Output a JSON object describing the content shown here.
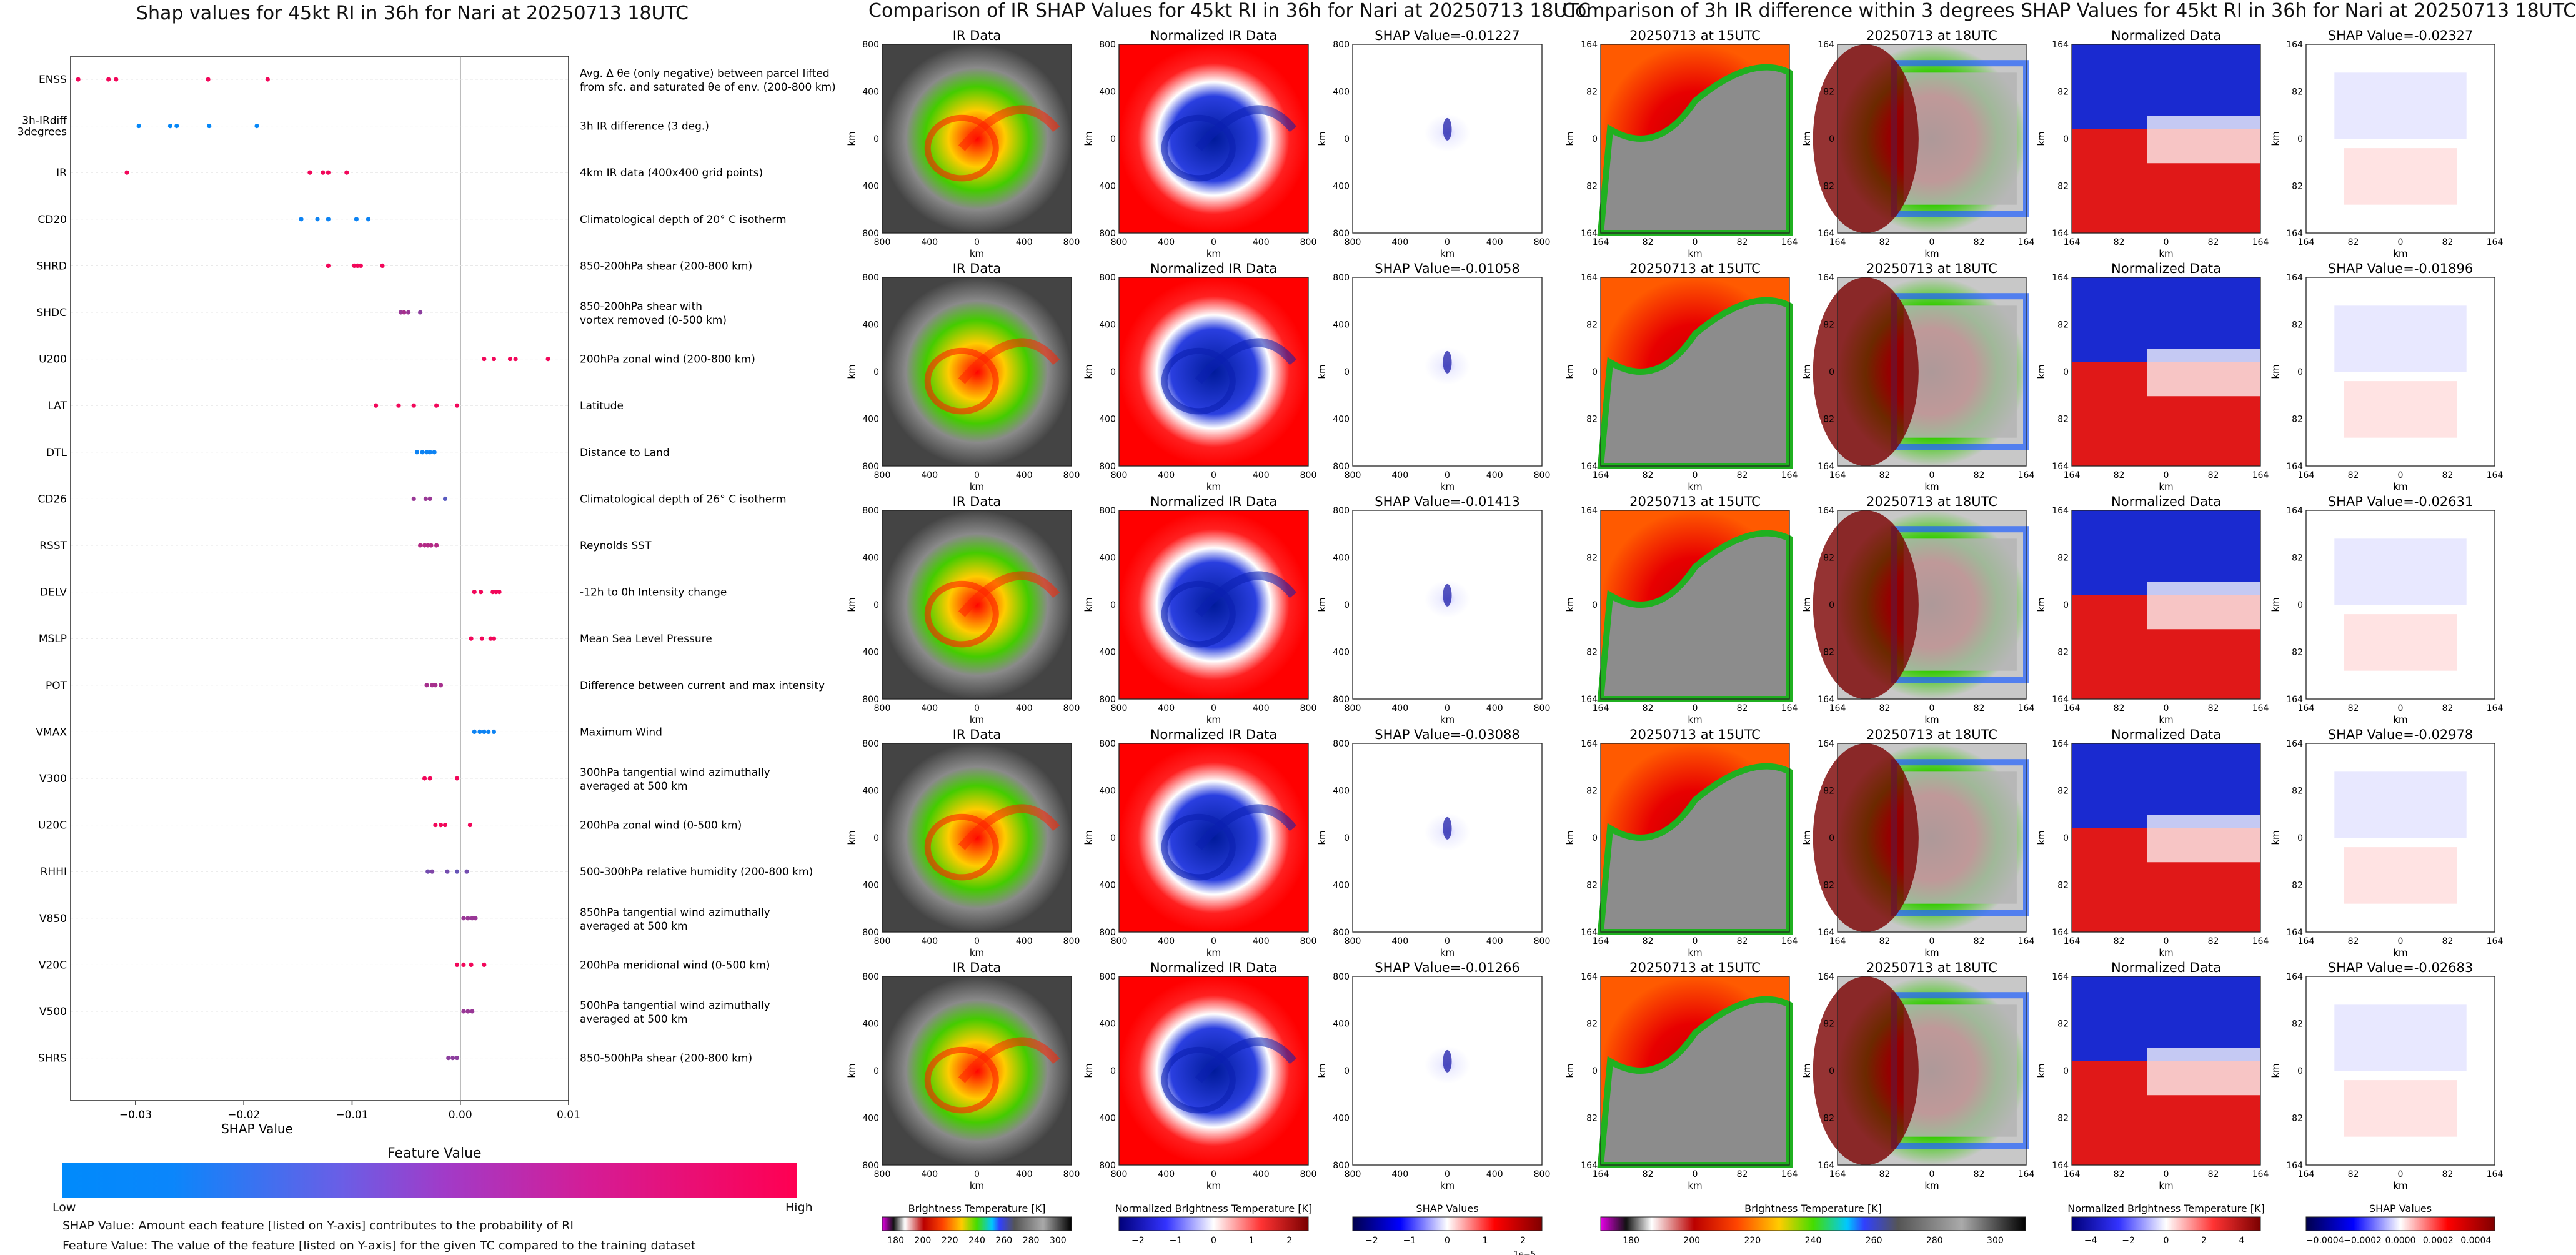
{
  "chart_data": [
    {
      "type": "scatter",
      "title": "Shap values for 45kt RI in 36h for Nari at 20250713 18UTC",
      "xlabel": "SHAP Value",
      "xlim": [
        -0.036,
        0.01
      ],
      "xticks": [
        "−0.03",
        "−0.02",
        "−0.01",
        "0.00",
        "0.01"
      ],
      "xtick_values": [
        -0.03,
        -0.02,
        -0.01,
        0.0,
        0.01
      ],
      "features": [
        {
          "name": "ENSS",
          "desc": [
            "Avg. Δ θe (only negative) between parcel lifted",
            "from sfc. and saturated θe of env. (200-800 km)"
          ],
          "values": [
            -0.0353,
            -0.0325,
            -0.0318,
            -0.0233,
            -0.0178
          ],
          "levels": [
            0.95,
            0.95,
            0.95,
            0.95,
            0.95
          ]
        },
        {
          "name": "3h-IRdiff 3degrees",
          "desc": [
            "3h IR difference (3 deg.)"
          ],
          "values": [
            -0.0297,
            -0.0268,
            -0.0262,
            -0.0232,
            -0.0188
          ],
          "levels": [
            0.02,
            0.02,
            0.02,
            0.02,
            0.02
          ]
        },
        {
          "name": "IR",
          "desc": [
            "4km IR data (400x400 grid points)"
          ],
          "values": [
            -0.0308,
            -0.0139,
            -0.0127,
            -0.0122,
            -0.0105
          ],
          "levels": [
            0.95,
            0.95,
            0.95,
            0.95,
            0.95
          ]
        },
        {
          "name": "CD20",
          "desc": [
            "Climatological depth of 20° C isotherm"
          ],
          "values": [
            -0.0147,
            -0.0132,
            -0.0122,
            -0.0096,
            -0.0085
          ],
          "levels": [
            0.05,
            0.05,
            0.05,
            0.05,
            0.05
          ]
        },
        {
          "name": "SHRD",
          "desc": [
            "850-200hPa shear (200-800 km)"
          ],
          "values": [
            -0.0122,
            -0.0098,
            -0.0095,
            -0.0092,
            -0.0072
          ],
          "levels": [
            0.95,
            0.95,
            0.95,
            0.95,
            0.95
          ]
        },
        {
          "name": "SHDC",
          "desc": [
            "850-200hPa shear with",
            "vortex removed (0-500 km)"
          ],
          "values": [
            -0.0055,
            -0.0052,
            -0.0048,
            -0.0037
          ],
          "levels": [
            0.6,
            0.65,
            0.6,
            0.55
          ]
        },
        {
          "name": "U200",
          "desc": [
            "200hPa zonal wind (200-800 km)"
          ],
          "values": [
            0.0022,
            0.0031,
            0.0046,
            0.0051,
            0.0081
          ],
          "levels": [
            0.95,
            0.95,
            0.95,
            0.95,
            0.95
          ]
        },
        {
          "name": "LAT",
          "desc": [
            "Latitude"
          ],
          "values": [
            -0.0078,
            -0.0057,
            -0.0043,
            -0.0022,
            -0.0003
          ],
          "levels": [
            0.95,
            0.95,
            0.95,
            0.95,
            0.95
          ]
        },
        {
          "name": "DTL",
          "desc": [
            "Distance to Land"
          ],
          "values": [
            -0.004,
            -0.0035,
            -0.0031,
            -0.0028,
            -0.0024
          ],
          "levels": [
            0.05,
            0.05,
            0.05,
            0.05,
            0.05
          ]
        },
        {
          "name": "CD26",
          "desc": [
            "Climatological depth of 26° C isotherm"
          ],
          "values": [
            -0.0043,
            -0.0032,
            -0.0028,
            -0.0014
          ],
          "levels": [
            0.6,
            0.6,
            0.6,
            0.35
          ]
        },
        {
          "name": "RSST",
          "desc": [
            "Reynolds SST"
          ],
          "values": [
            -0.0037,
            -0.0033,
            -0.003,
            -0.0027,
            -0.0022
          ],
          "levels": [
            0.7,
            0.7,
            0.7,
            0.7,
            0.7
          ]
        },
        {
          "name": "DELV",
          "desc": [
            "-12h to 0h Intensity change"
          ],
          "values": [
            0.0013,
            0.0019,
            0.003,
            0.0033,
            0.0036
          ],
          "levels": [
            0.95,
            0.95,
            0.95,
            0.95,
            0.95
          ]
        },
        {
          "name": "MSLP",
          "desc": [
            "Mean Sea Level Pressure"
          ],
          "values": [
            0.001,
            0.002,
            0.0028,
            0.0031
          ],
          "levels": [
            0.95,
            0.95,
            0.95,
            0.95
          ]
        },
        {
          "name": "POT",
          "desc": [
            "Difference between current and max intensity"
          ],
          "values": [
            -0.0031,
            -0.0026,
            -0.0023,
            -0.0018
          ],
          "levels": [
            0.65,
            0.65,
            0.65,
            0.65
          ]
        },
        {
          "name": "VMAX",
          "desc": [
            "Maximum Wind"
          ],
          "values": [
            0.0013,
            0.0018,
            0.0022,
            0.0026,
            0.0031
          ],
          "levels": [
            0.05,
            0.05,
            0.05,
            0.05,
            0.05
          ]
        },
        {
          "name": "V300",
          "desc": [
            "300hPa tangential wind azimuthally",
            "averaged at 500 km"
          ],
          "values": [
            -0.0033,
            -0.0028,
            -0.0003
          ],
          "levels": [
            0.95,
            0.95,
            0.95
          ]
        },
        {
          "name": "U20C",
          "desc": [
            "200hPa zonal wind (0-500 km)"
          ],
          "values": [
            -0.0023,
            -0.0018,
            -0.0014,
            0.0009
          ],
          "levels": [
            0.95,
            0.95,
            0.95,
            0.95
          ]
        },
        {
          "name": "RHHI",
          "desc": [
            "500-300hPa relative humidity (200-800 km)"
          ],
          "values": [
            -0.003,
            -0.0026,
            -0.0012,
            -0.0003,
            0.0006
          ],
          "levels": [
            0.45,
            0.5,
            0.45,
            0.4,
            0.45
          ]
        },
        {
          "name": "V850",
          "desc": [
            "850hPa tangential wind azimuthally",
            "averaged at 500 km"
          ],
          "values": [
            0.0003,
            0.0007,
            0.0011,
            0.0014
          ],
          "levels": [
            0.6,
            0.6,
            0.6,
            0.6
          ]
        },
        {
          "name": "V20C",
          "desc": [
            "200hPa meridional wind (0-500 km)"
          ],
          "values": [
            -0.0003,
            0.0003,
            0.001,
            0.0022
          ],
          "levels": [
            0.95,
            0.95,
            0.95,
            0.95
          ]
        },
        {
          "name": "V500",
          "desc": [
            "500hPa tangential wind azimuthally",
            "averaged at 500 km"
          ],
          "values": [
            0.0003,
            0.0007,
            0.0011
          ],
          "levels": [
            0.6,
            0.6,
            0.6
          ]
        },
        {
          "name": "SHRS",
          "desc": [
            "850-500hPa shear (200-800 km)"
          ],
          "values": [
            -0.0011,
            -0.0007,
            -0.0003
          ],
          "levels": [
            0.55,
            0.55,
            0.55
          ]
        }
      ],
      "colorbar": {
        "title": "Feature Value",
        "low_label": "Low",
        "high_label": "High",
        "colors": [
          "#008afb",
          "#ff0052"
        ]
      }
    },
    {
      "type": "heatmap",
      "title": "Comparison of IR SHAP Values for 45kt RI in 36h for Nari at 20250713 18UTC",
      "column_titles": [
        "IR Data",
        "Normalized IR Data"
      ],
      "shap_titles": [
        "SHAP Value=-0.01227",
        "SHAP Value=-0.01058",
        "SHAP Value=-0.01413",
        "SHAP Value=-0.03088",
        "SHAP Value=-0.01266"
      ],
      "xlabel": "km",
      "ylabel": "km",
      "xticks": [
        "800",
        "400",
        "0",
        "400",
        "800"
      ],
      "yticks": [
        "800",
        "400",
        "0",
        "400",
        "800"
      ],
      "colorbars": [
        {
          "label": "Brightness Temperature [K]",
          "ticks": [
            "180",
            "200",
            "220",
            "240",
            "260",
            "280",
            "300"
          ]
        },
        {
          "label": "Normalized Brightness Temperature [K]",
          "ticks": [
            "−2",
            "−1",
            "0",
            "1",
            "2"
          ]
        },
        {
          "label": "SHAP Values",
          "ticks": [
            "−2",
            "−1",
            "0",
            "1",
            "2"
          ],
          "offset": "1e−5"
        }
      ]
    },
    {
      "type": "heatmap",
      "title": "Comparison of 3h IR difference within 3 degrees SHAP Values for 45kt RI in 36h for Nari at 20250713 18UTC",
      "column_titles": [
        "20250713 at 15UTC",
        "20250713 at 18UTC",
        "Normalized Data"
      ],
      "shap_titles": [
        "SHAP Value=-0.02327",
        "SHAP Value=-0.01896",
        "SHAP Value=-0.02631",
        "SHAP Value=-0.02978",
        "SHAP Value=-0.02683"
      ],
      "xlabel": "km",
      "ylabel": "km",
      "xticks": [
        "164",
        "82",
        "0",
        "82",
        "164"
      ],
      "yticks": [
        "164",
        "82",
        "0",
        "82",
        "164"
      ],
      "colorbars": [
        {
          "label": "Brightness Temperature [K]",
          "ticks": [
            "180",
            "200",
            "220",
            "240",
            "260",
            "280",
            "300"
          ]
        },
        {
          "label": "Normalized Brightness Temperature [K]",
          "ticks": [
            "−4",
            "−2",
            "0",
            "2",
            "4"
          ]
        },
        {
          "label": "SHAP Values",
          "ticks": [
            "−0.0004",
            "−0.0002",
            "0.0000",
            "0.0002",
            "0.0004"
          ]
        }
      ]
    }
  ],
  "notes": {
    "line1": "SHAP Value: Amount each feature [listed on Y-axis] contributes to the probability of RI",
    "line2": "Feature Value: The value of the feature [listed on Y-axis] for the given TC compared to the training dataset"
  }
}
